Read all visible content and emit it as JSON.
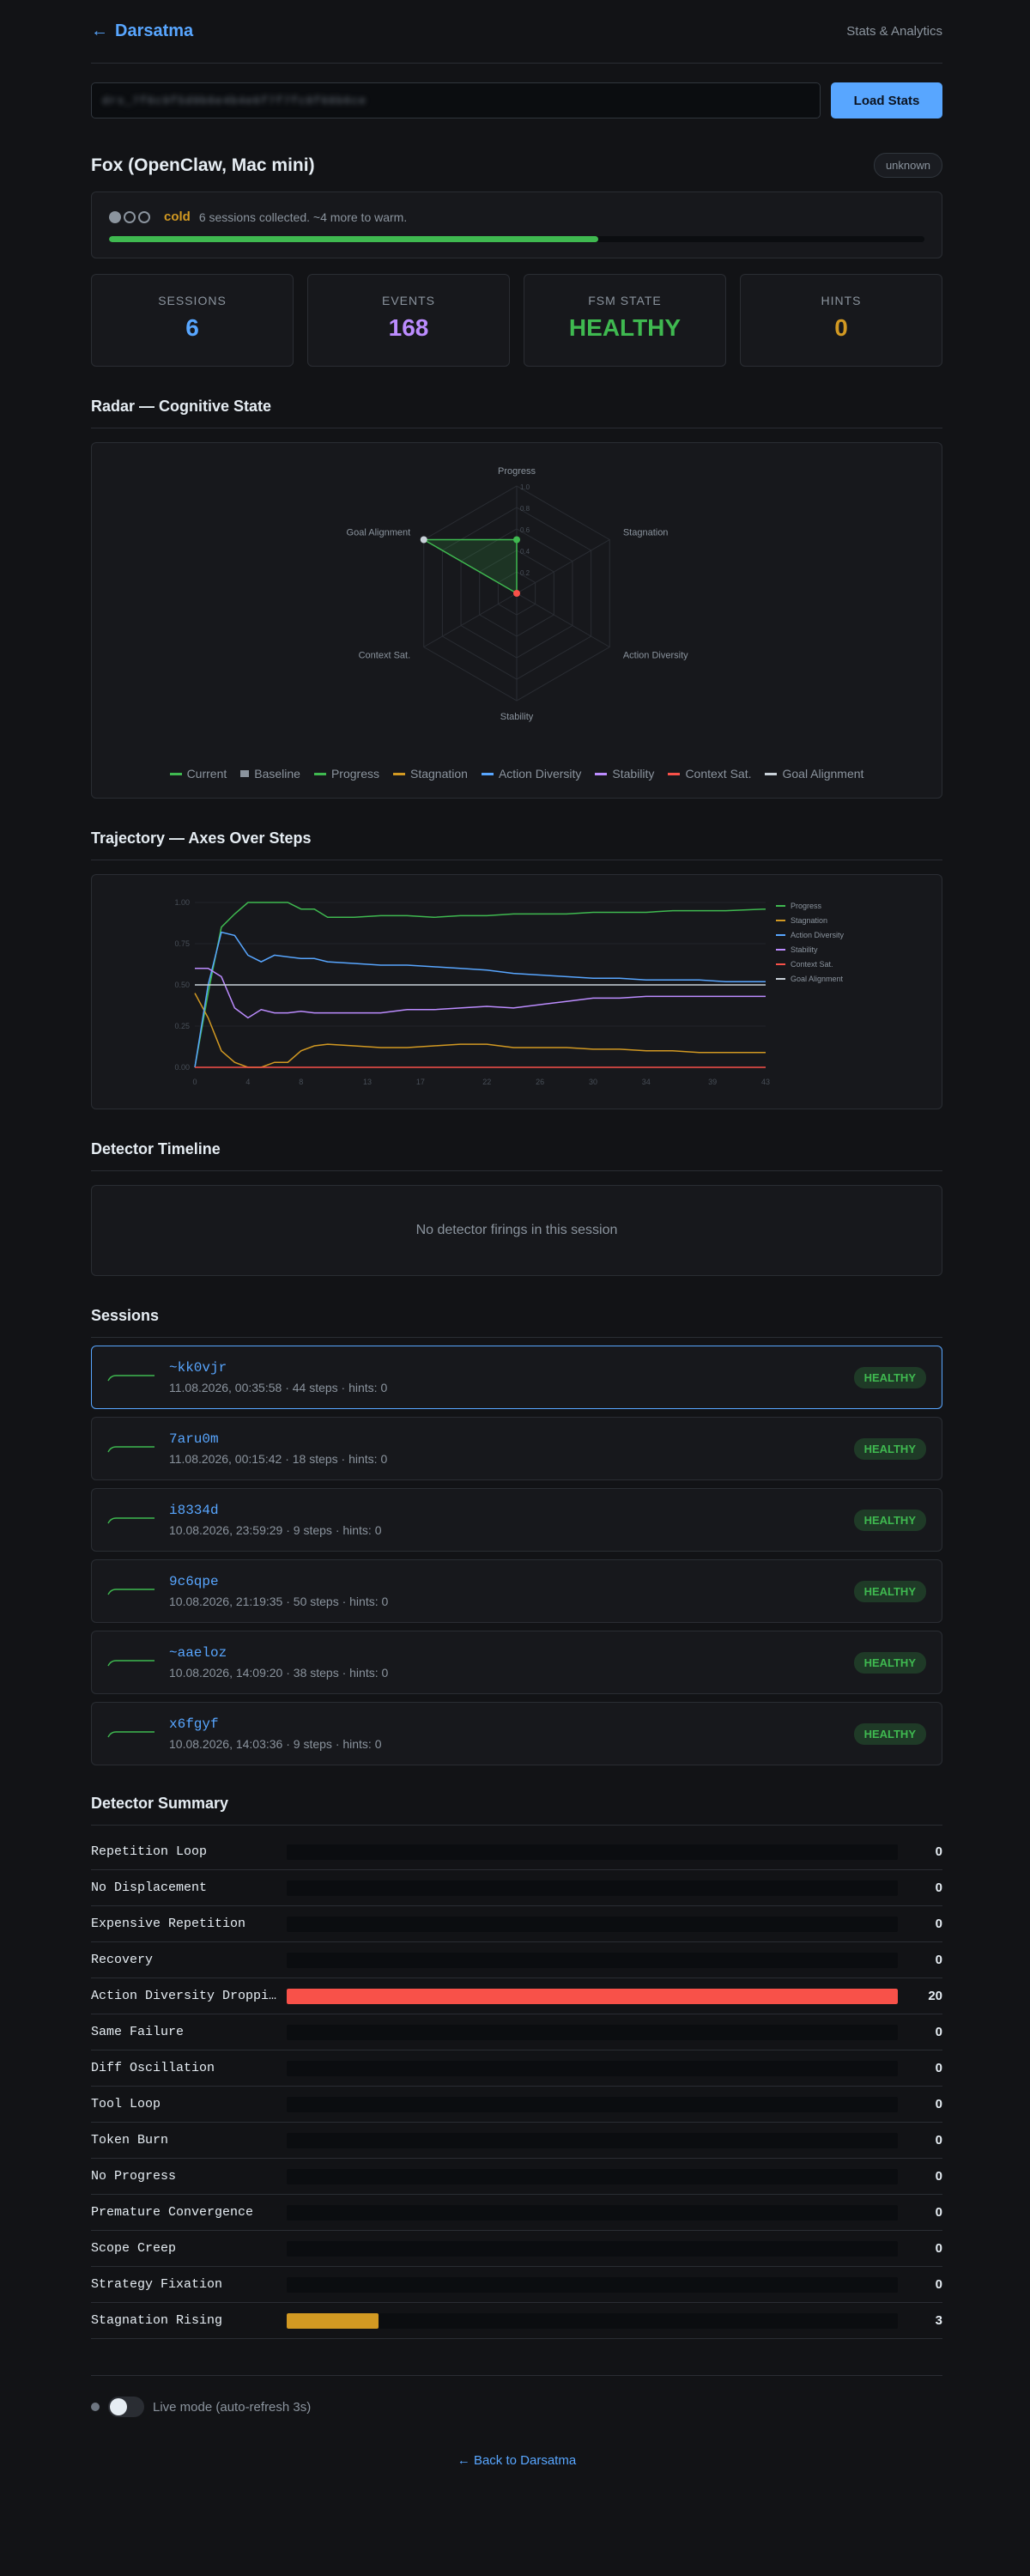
{
  "header": {
    "brand": "Darsatma",
    "stats_link": "Stats & Analytics"
  },
  "token": {
    "value": "drs_7f6c9f5d9b6e4b4e6f7f7fc8f68b6ce",
    "load_button": "Load Stats"
  },
  "agent": {
    "name": "Fox (OpenClaw, Mac mini)",
    "status_pill": "unknown",
    "warmup_label": "cold",
    "warmup_text": "6 sessions collected. ~4 more to warm.",
    "warmup_progress": 0.6
  },
  "stats": [
    {
      "label": "SESSIONS",
      "value": "6",
      "color": "#58a6ff"
    },
    {
      "label": "EVENTS",
      "value": "168",
      "color": "#bc8cff"
    },
    {
      "label": "FSM STATE",
      "value": "HEALTHY",
      "color": "#3fb950"
    },
    {
      "label": "HINTS",
      "value": "0",
      "color": "#d29922"
    }
  ],
  "sections": {
    "radar": "Radar — Cognitive State",
    "trajectory": "Trajectory — Axes Over Steps",
    "timeline": "Detector Timeline",
    "timeline_empty": "No detector firings in this session",
    "sessions": "Sessions",
    "summary": "Detector Summary"
  },
  "colors": {
    "progress": "#3fb950",
    "stagnation": "#d29922",
    "action_diversity": "#58a6ff",
    "stability": "#bc8cff",
    "context_sat": "#f85149",
    "goal_alignment": "#c9d1d9",
    "baseline": "#8b949e"
  },
  "chart_data": [
    {
      "type": "radar",
      "axes": [
        "Progress",
        "Stagnation",
        "Action Diversity",
        "Stability",
        "Context Sat.",
        "Goal Alignment"
      ],
      "rlim": [
        0,
        1
      ],
      "ticks": [
        "1.0",
        "0.8",
        "0.6",
        "0.4",
        "0.2"
      ],
      "series": [
        {
          "name": "Current",
          "values": [
            0.5,
            0.0,
            0.0,
            0.0,
            0.0,
            1.0
          ]
        }
      ],
      "legend": [
        {
          "name": "Current",
          "color": "#3fb950"
        },
        {
          "name": "Baseline",
          "color": "#8b949e"
        },
        {
          "name": "Progress",
          "color": "#3fb950"
        },
        {
          "name": "Stagnation",
          "color": "#d29922"
        },
        {
          "name": "Action Diversity",
          "color": "#58a6ff"
        },
        {
          "name": "Stability",
          "color": "#bc8cff"
        },
        {
          "name": "Context Sat.",
          "color": "#f85149"
        },
        {
          "name": "Goal Alignment",
          "color": "#c9d1d9"
        }
      ],
      "points": [
        {
          "axis": "Progress",
          "value": 0.5,
          "color": "#3fb950"
        },
        {
          "axis": "Goal Alignment",
          "value": 1.0,
          "color": "#c9d1d9"
        },
        {
          "axis": "Context Sat.",
          "value": 0.0,
          "color": "#f85149"
        }
      ]
    },
    {
      "type": "line",
      "xlim": [
        0,
        43
      ],
      "ylim": [
        0,
        1
      ],
      "xticks": [
        "0",
        "4",
        "8",
        "13",
        "17",
        "22",
        "26",
        "30",
        "34",
        "39",
        "43"
      ],
      "xtick_values": [
        0,
        4,
        8,
        13,
        17,
        22,
        26,
        30,
        34,
        39,
        43
      ],
      "yticks": [
        "0.00",
        "0.25",
        "0.50",
        "0.75",
        "1.00"
      ],
      "ytick_values": [
        0,
        0.25,
        0.5,
        0.75,
        1.0
      ],
      "series": [
        {
          "name": "Progress",
          "color": "#3fb950",
          "x": [
            0,
            1,
            2,
            3,
            4,
            5,
            6,
            7,
            8,
            9,
            10,
            12,
            14,
            16,
            18,
            20,
            22,
            24,
            26,
            28,
            30,
            32,
            34,
            36,
            38,
            40,
            43
          ],
          "y": [
            0.0,
            0.45,
            0.85,
            0.93,
            1.0,
            1.0,
            1.0,
            1.0,
            0.96,
            0.96,
            0.91,
            0.91,
            0.92,
            0.92,
            0.91,
            0.92,
            0.92,
            0.93,
            0.93,
            0.93,
            0.94,
            0.94,
            0.94,
            0.95,
            0.95,
            0.95,
            0.96
          ]
        },
        {
          "name": "Stagnation",
          "color": "#d29922",
          "x": [
            0,
            1,
            2,
            3,
            4,
            5,
            6,
            7,
            8,
            9,
            10,
            12,
            14,
            16,
            18,
            20,
            22,
            24,
            26,
            28,
            30,
            32,
            34,
            36,
            38,
            40,
            43
          ],
          "y": [
            0.45,
            0.3,
            0.1,
            0.03,
            0.0,
            0.0,
            0.03,
            0.03,
            0.1,
            0.13,
            0.14,
            0.13,
            0.12,
            0.12,
            0.13,
            0.14,
            0.14,
            0.12,
            0.12,
            0.12,
            0.11,
            0.11,
            0.1,
            0.1,
            0.09,
            0.09,
            0.09
          ]
        },
        {
          "name": "Action Diversity",
          "color": "#58a6ff",
          "x": [
            0,
            1,
            2,
            3,
            4,
            5,
            6,
            7,
            8,
            9,
            10,
            12,
            14,
            16,
            18,
            20,
            22,
            24,
            26,
            28,
            30,
            32,
            34,
            36,
            38,
            40,
            43
          ],
          "y": [
            0.0,
            0.5,
            0.82,
            0.8,
            0.68,
            0.64,
            0.68,
            0.67,
            0.66,
            0.66,
            0.64,
            0.63,
            0.62,
            0.62,
            0.61,
            0.6,
            0.59,
            0.57,
            0.56,
            0.55,
            0.54,
            0.54,
            0.53,
            0.53,
            0.53,
            0.52,
            0.52
          ]
        },
        {
          "name": "Stability",
          "color": "#bc8cff",
          "x": [
            0,
            1,
            2,
            3,
            4,
            5,
            6,
            7,
            8,
            9,
            10,
            12,
            14,
            16,
            18,
            20,
            22,
            24,
            26,
            28,
            30,
            32,
            34,
            36,
            38,
            40,
            43
          ],
          "y": [
            0.6,
            0.6,
            0.55,
            0.36,
            0.3,
            0.35,
            0.33,
            0.33,
            0.34,
            0.33,
            0.33,
            0.33,
            0.33,
            0.35,
            0.35,
            0.36,
            0.37,
            0.36,
            0.38,
            0.4,
            0.42,
            0.42,
            0.43,
            0.43,
            0.43,
            0.43,
            0.43
          ]
        },
        {
          "name": "Context Sat.",
          "color": "#f85149",
          "x": [
            0,
            43
          ],
          "y": [
            0.0,
            0.0
          ]
        },
        {
          "name": "Goal Alignment",
          "color": "#c9d1d9",
          "x": [
            0,
            43
          ],
          "y": [
            0.5,
            0.5
          ]
        }
      ]
    }
  ],
  "sessions": [
    {
      "id": "~kk0vjr",
      "meta": "11.08.2026, 00:35:58 · 44 steps · hints: 0",
      "state": "HEALTHY",
      "active": true
    },
    {
      "id": "7aru0m",
      "meta": "11.08.2026, 00:15:42 · 18 steps · hints: 0",
      "state": "HEALTHY",
      "active": false
    },
    {
      "id": "i8334d",
      "meta": "10.08.2026, 23:59:29 · 9 steps · hints: 0",
      "state": "HEALTHY",
      "active": false
    },
    {
      "id": "9c6qpe",
      "meta": "10.08.2026, 21:19:35 · 50 steps · hints: 0",
      "state": "HEALTHY",
      "active": false
    },
    {
      "id": "~aaeloz",
      "meta": "10.08.2026, 14:09:20 · 38 steps · hints: 0",
      "state": "HEALTHY",
      "active": false
    },
    {
      "id": "x6fgyf",
      "meta": "10.08.2026, 14:03:36 · 9 steps · hints: 0",
      "state": "HEALTHY",
      "active": false
    }
  ],
  "detectors": [
    {
      "name": "Repetition Loop",
      "count": 0,
      "color": "#f85149"
    },
    {
      "name": "No Displacement",
      "count": 0,
      "color": "#f85149"
    },
    {
      "name": "Expensive Repetition",
      "count": 0,
      "color": "#f85149"
    },
    {
      "name": "Recovery",
      "count": 0,
      "color": "#f85149"
    },
    {
      "name": "Action Diversity Droppi…",
      "count": 20,
      "color": "#f85149"
    },
    {
      "name": "Same Failure",
      "count": 0,
      "color": "#f85149"
    },
    {
      "name": "Diff Oscillation",
      "count": 0,
      "color": "#f85149"
    },
    {
      "name": "Tool Loop",
      "count": 0,
      "color": "#f85149"
    },
    {
      "name": "Token Burn",
      "count": 0,
      "color": "#f85149"
    },
    {
      "name": "No Progress",
      "count": 0,
      "color": "#f85149"
    },
    {
      "name": "Premature Convergence",
      "count": 0,
      "color": "#f85149"
    },
    {
      "name": "Scope Creep",
      "count": 0,
      "color": "#f85149"
    },
    {
      "name": "Strategy Fixation",
      "count": 0,
      "color": "#f85149"
    },
    {
      "name": "Stagnation Rising",
      "count": 3,
      "color": "#d29922"
    }
  ],
  "footer": {
    "live_label": "Live mode (auto-refresh 3s)",
    "back_link": "← Back to Darsatma"
  }
}
